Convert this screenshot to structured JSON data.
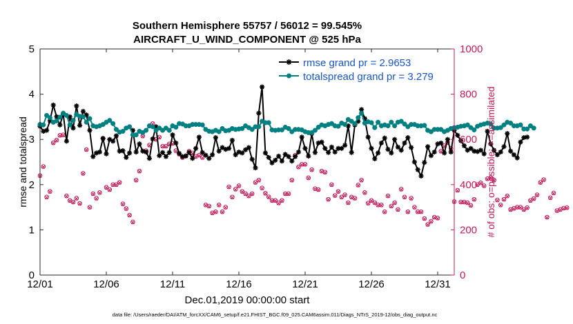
{
  "chart_data": {
    "type": "line",
    "title_line1": "Southern Hemisphere 55757 / 56012 = 99.545%",
    "title_line2": "AIRCRAFT_U_WIND_COMPONENT @ 525 hPa",
    "xlabel": "Dec.01,2019 00:00:00 start",
    "ylabel_left": "rmse and totalspread",
    "ylabel_right": "# of obs: o=possible; ×=assimilated",
    "footer": "data file: /Users/raeder/DAI/ATM_forcXX/CAM6_setup/f.e21.FHIST_BGC.f09_025.CAM6assim.011/Diags_NTrS_2019-12/obs_diag_output.nc",
    "x_range": [
      0,
      31.25
    ],
    "x_ticks": [
      0,
      5,
      10,
      15,
      20,
      25,
      30
    ],
    "x_tick_labels": [
      "12/01",
      "12/06",
      "12/11",
      "12/16",
      "12/21",
      "12/26",
      "12/31"
    ],
    "ylim_left": [
      0,
      5
    ],
    "y_ticks_left": [
      "0",
      "1",
      "2",
      "3",
      "4",
      "5"
    ],
    "ylim_right": [
      0,
      1000
    ],
    "y_ticks_right": [
      "0",
      "200",
      "400",
      "600",
      "800",
      "1000"
    ],
    "legend": [
      {
        "label": "rmse grand pr = 2.9653",
        "color": "#000000",
        "marker": "star"
      },
      {
        "label": "totalspread grand pr = 3.279",
        "color": "#008080",
        "marker": "circle"
      }
    ],
    "x_start": 0.0,
    "x_step": 0.25,
    "series": [
      {
        "name": "rmse",
        "axis": "left",
        "color": "#000000",
        "values": [
          3.29,
          3.18,
          3.2,
          3.41,
          3.76,
          3.5,
          3.32,
          3.56,
          2.96,
          3.5,
          3.25,
          3.74,
          3.31,
          3.62,
          3.54,
          3.2,
          2.62,
          2.7,
          2.72,
          3.02,
          2.68,
          3.0,
          2.96,
          3.08,
          2.74,
          2.75,
          2.6,
          2.7,
          3.2,
          2.72,
          2.9,
          2.74,
          2.72,
          2.58,
          3.01,
          3.28,
          2.64,
          2.71,
          2.62,
          2.71,
          3.1,
          2.92,
          2.69,
          2.62,
          2.63,
          2.71,
          2.58,
          2.8,
          3.05,
          2.71,
          2.65,
          2.58,
          2.66,
          3.04,
          2.74,
          2.82,
          2.78,
          2.8,
          2.98,
          2.66,
          2.72,
          2.7,
          2.77,
          2.82,
          2.56,
          2.37,
          3.58,
          4.16,
          2.7,
          2.6,
          2.48,
          2.54,
          2.63,
          2.52,
          2.67,
          2.62,
          2.52,
          2.62,
          2.72,
          3.05,
          2.8,
          2.63,
          3.13,
          2.71,
          2.92,
          2.94,
          2.8,
          2.71,
          2.83,
          2.72,
          2.8,
          2.8,
          2.87,
          3.3,
          2.71,
          3.32,
          3.4,
          3.66,
          3.46,
          3.05,
          2.8,
          2.57,
          2.7,
          2.92,
          3.03,
          2.78,
          2.7,
          3.0,
          2.83,
          2.76,
          2.92,
          3.04,
          2.82,
          2.5,
          2.33,
          2.19,
          2.49,
          2.84,
          2.64,
          2.72,
          2.9,
          2.92,
          2.7,
          3.0,
          2.72,
          3.2,
          3.09,
          2.97,
          2.86,
          2.76,
          2.8,
          2.74,
          2.73,
          2.76,
          2.68,
          3.18,
          2.9,
          2.76,
          2.66,
          2.72,
          2.84,
          3.13,
          2.74,
          2.66,
          2.59,
          2.94,
          3.04,
          3.05
        ]
      },
      {
        "name": "totalspread",
        "axis": "left",
        "color": "#008080",
        "values": [
          3.33,
          3.32,
          3.53,
          3.48,
          3.38,
          3.41,
          3.49,
          3.58,
          3.53,
          3.32,
          3.42,
          3.55,
          3.51,
          3.5,
          3.38,
          3.46,
          3.3,
          3.28,
          3.3,
          3.33,
          3.38,
          3.42,
          3.35,
          3.22,
          3.16,
          3.18,
          3.25,
          3.28,
          3.1,
          3.1,
          3.18,
          3.15,
          3.2,
          3.3,
          3.28,
          3.2,
          3.25,
          3.2,
          3.25,
          3.2,
          3.3,
          3.27,
          3.35,
          3.34,
          3.3,
          3.3,
          3.33,
          3.33,
          3.33,
          3.32,
          3.22,
          3.18,
          3.17,
          3.2,
          3.17,
          3.24,
          3.19,
          3.2,
          3.24,
          3.22,
          3.23,
          3.24,
          3.3,
          3.26,
          3.22,
          3.28,
          3.28,
          3.4,
          3.37,
          3.37,
          3.21,
          3.2,
          3.21,
          3.21,
          3.27,
          3.24,
          3.17,
          3.22,
          3.22,
          3.21,
          3.17,
          3.15,
          3.15,
          3.2,
          3.27,
          3.32,
          3.3,
          3.33,
          3.35,
          3.3,
          3.29,
          3.36,
          3.33,
          3.44,
          3.4,
          3.35,
          3.48,
          3.58,
          3.36,
          3.39,
          3.37,
          3.26,
          3.38,
          3.3,
          3.32,
          3.3,
          3.38,
          3.3,
          3.38,
          3.4,
          3.34,
          3.28,
          3.33,
          3.33,
          3.3,
          3.3,
          3.31,
          3.2,
          3.17,
          3.22,
          3.22,
          3.22,
          3.17,
          3.2,
          3.24,
          3.26,
          3.27,
          3.29,
          3.3,
          3.32,
          3.26,
          3.21,
          3.29,
          3.32,
          3.34,
          3.36,
          3.34,
          3.25,
          3.25,
          3.26,
          3.32,
          3.38,
          3.36,
          3.3,
          3.3,
          3.32,
          3.23,
          3.23,
          3.3,
          3.25
        ]
      },
      {
        "name": "obs_possible",
        "axis": "right",
        "color": "#c2185b",
        "marker": "circle",
        "values": [
          440,
          480,
          345,
          370,
          585,
          597,
          618,
          620,
          350,
          330,
          323,
          340,
          317,
          450,
          555,
          300,
          360,
          340,
          365,
          605,
          388,
          378,
          400,
          400,
          410,
          315,
          294,
          265,
          235,
          420,
          460,
          615,
          550,
          575,
          670,
          600,
          610,
          570,
          570,
          580,
          582,
          550,
          535,
          520,
          528,
          548,
          540,
          525,
          530,
          520,
          310,
          305,
          275,
          280,
          310,
          280,
          300,
          390,
          345,
          380,
          395,
          370,
          360,
          350,
          360,
          410,
          420,
          385,
          362,
          346,
          330,
          330,
          319,
          330,
          360,
          360,
          420,
          530,
          478,
          490,
          490,
          430,
          466,
          382,
          378,
          460,
          455,
          335,
          400,
          352,
          370,
          345,
          355,
          320,
          345,
          340,
          398,
          420,
          365,
          318,
          330,
          320,
          310,
          310,
          280,
          350,
          305,
          320,
          290,
          380,
          345,
          280,
          340,
          300,
          280,
          280,
          250,
          224,
          238,
          256,
          252,
          548,
          572,
          586,
          560,
          325,
          375,
          323,
          323,
          320,
          308,
          335,
          400,
          408,
          395,
          426,
          432,
          420,
          332,
          310,
          335,
          350,
          290,
          295,
          300,
          300,
          290,
          298,
          330,
          338,
          355,
          410,
          422,
          256,
          342,
          363,
          285,
          290,
          296,
          298
        ]
      },
      {
        "name": "obs_assimilated",
        "axis": "right",
        "color": "#c2185b",
        "marker": "x",
        "values": [
          438,
          478,
          343,
          368,
          583,
          595,
          616,
          618,
          348,
          328,
          321,
          338,
          315,
          448,
          553,
          298,
          358,
          338,
          363,
          603,
          386,
          376,
          398,
          398,
          408,
          313,
          292,
          263,
          233,
          418,
          458,
          613,
          548,
          573,
          668,
          598,
          608,
          568,
          568,
          578,
          580,
          548,
          533,
          518,
          526,
          546,
          538,
          523,
          528,
          518,
          308,
          303,
          273,
          278,
          308,
          278,
          298,
          388,
          343,
          378,
          393,
          368,
          358,
          348,
          358,
          408,
          418,
          383,
          360,
          344,
          328,
          328,
          317,
          328,
          358,
          358,
          418,
          528,
          476,
          488,
          488,
          428,
          464,
          380,
          376,
          458,
          453,
          333,
          398,
          350,
          368,
          343,
          353,
          318,
          343,
          338,
          396,
          418,
          363,
          316,
          328,
          318,
          308,
          308,
          278,
          348,
          303,
          318,
          288,
          378,
          343,
          278,
          338,
          298,
          278,
          278,
          248,
          222,
          236,
          254,
          250,
          546,
          570,
          584,
          558,
          323,
          373,
          321,
          321,
          318,
          306,
          333,
          398,
          406,
          393,
          424,
          430,
          418,
          330,
          308,
          333,
          348,
          288,
          293,
          298,
          298,
          288,
          296,
          328,
          336,
          353,
          408,
          420,
          254,
          340,
          361,
          283,
          288,
          294,
          296
        ]
      }
    ]
  }
}
